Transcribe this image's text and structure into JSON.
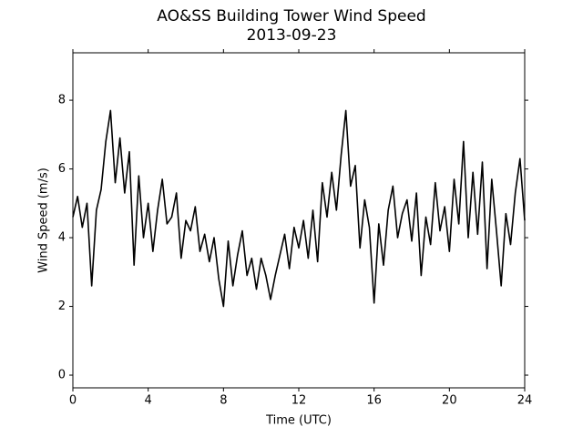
{
  "chart_data": {
    "type": "line",
    "title": "AO&SS Building Tower Wind Speed",
    "subtitle": "2013-09-23",
    "x_label": "Time (UTC)",
    "y_label": "Wind Speed (m/s)",
    "x": [
      0,
      0.25,
      0.5,
      0.75,
      1,
      1.25,
      1.5,
      1.75,
      2,
      2.25,
      2.5,
      2.75,
      3,
      3.25,
      3.5,
      3.75,
      4,
      4.25,
      4.5,
      4.75,
      5,
      5.25,
      5.5,
      5.75,
      6,
      6.25,
      6.5,
      6.75,
      7,
      7.25,
      7.5,
      7.75,
      8,
      8.25,
      8.5,
      8.75,
      9,
      9.25,
      9.5,
      9.75,
      10,
      10.25,
      10.5,
      10.75,
      11,
      11.25,
      11.5,
      11.75,
      12,
      12.25,
      12.5,
      12.75,
      13,
      13.25,
      13.5,
      13.75,
      14,
      14.25,
      14.5,
      14.75,
      15,
      15.25,
      15.5,
      15.75,
      16,
      16.25,
      16.5,
      16.75,
      17,
      17.25,
      17.5,
      17.75,
      18,
      18.25,
      18.5,
      18.75,
      19,
      19.25,
      19.5,
      19.75,
      20,
      20.25,
      20.5,
      20.75,
      21,
      21.25,
      21.5,
      21.75,
      22,
      22.25,
      22.5,
      22.75,
      23,
      23.25,
      23.5,
      23.75,
      24
    ],
    "series": [
      {
        "name": "Wind Speed",
        "color": "#000000",
        "values": [
          4.6,
          5.2,
          4.3,
          5.0,
          2.6,
          4.8,
          5.4,
          6.8,
          7.7,
          5.6,
          6.9,
          5.3,
          6.5,
          3.2,
          5.8,
          4.0,
          5.0,
          3.6,
          4.8,
          5.7,
          4.4,
          4.6,
          5.3,
          3.4,
          4.5,
          4.2,
          4.9,
          3.6,
          4.1,
          3.3,
          4.0,
          2.8,
          2.0,
          3.9,
          2.6,
          3.5,
          4.2,
          2.9,
          3.4,
          2.5,
          3.4,
          2.9,
          2.2,
          2.9,
          3.5,
          4.1,
          3.1,
          4.3,
          3.7,
          4.5,
          3.4,
          4.8,
          3.3,
          5.6,
          4.6,
          5.9,
          4.8,
          6.4,
          7.7,
          5.5,
          6.1,
          3.7,
          5.1,
          4.3,
          2.1,
          4.4,
          3.2,
          4.8,
          5.5,
          4.0,
          4.7,
          5.1,
          3.9,
          5.3,
          2.9,
          4.6,
          3.8,
          5.6,
          4.2,
          4.9,
          3.6,
          5.7,
          4.4,
          6.8,
          4.0,
          5.9,
          4.1,
          6.2,
          3.1,
          5.7,
          4.2,
          2.6,
          4.7,
          3.8,
          5.3,
          6.3,
          4.5
        ]
      }
    ],
    "xlim": [
      0,
      24
    ],
    "xticks": [
      0,
      4,
      8,
      12,
      16,
      20,
      24
    ],
    "ylim": [
      -0.37,
      9.38
    ],
    "yticks": [
      0,
      2,
      4,
      6,
      8
    ],
    "grid": false
  }
}
